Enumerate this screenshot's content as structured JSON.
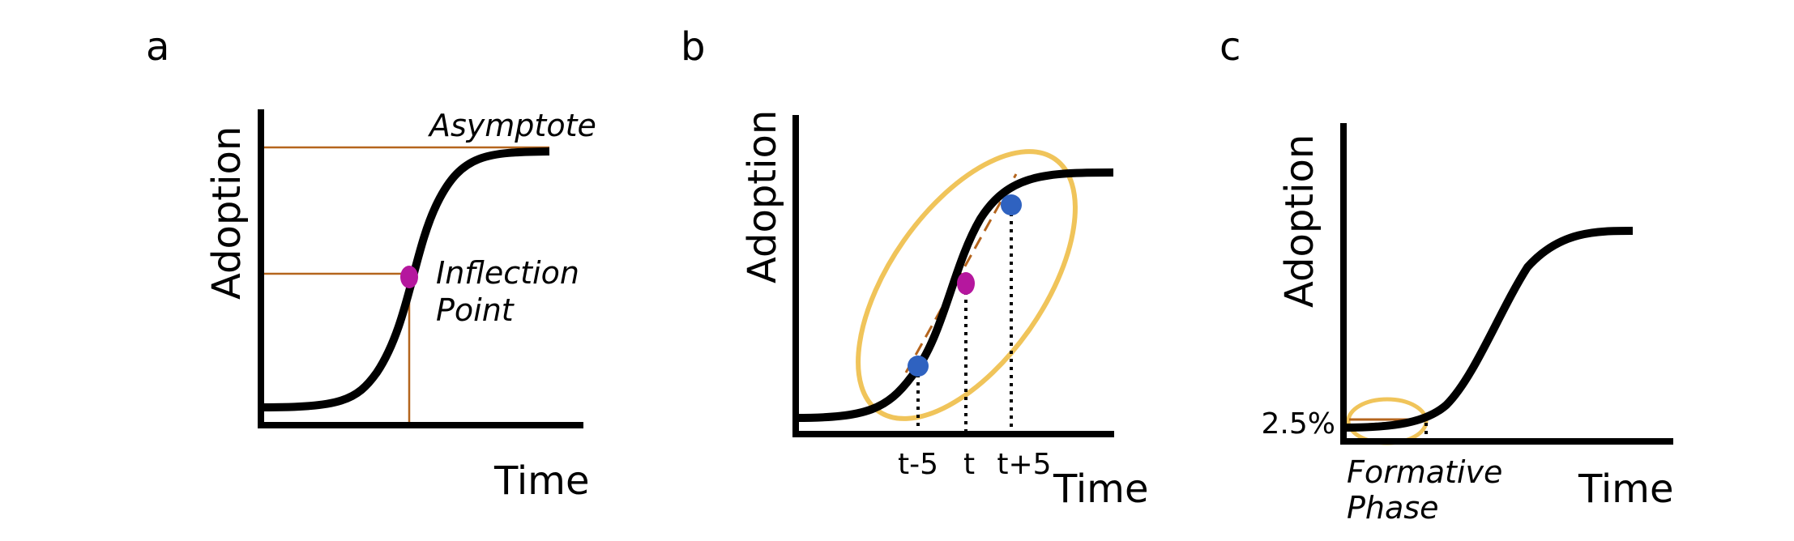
{
  "colors": {
    "curve": "#000000",
    "guide_line": "#b5651d",
    "inflection_point": "#b5179e",
    "window_point": "#2f62c0",
    "highlight_ellipse": "#f0c45a",
    "tangent_dashed": "#b5651d"
  },
  "panels": [
    {
      "letter": "a",
      "xlabel": "Time",
      "ylabel": "Adoption",
      "annotations": {
        "asymptote": "Asymptote",
        "inflection_line1": "Inflection",
        "inflection_line2": "Point"
      }
    },
    {
      "letter": "b",
      "xlabel": "Time",
      "ylabel": "Adoption",
      "ticks": [
        "t-5",
        "t",
        "t+5"
      ]
    },
    {
      "letter": "c",
      "xlabel": "Time",
      "ylabel": "Adoption",
      "threshold_label": "2.5%",
      "annotations": {
        "phase_line1": "Formative",
        "phase_line2": "Phase"
      }
    }
  ]
}
